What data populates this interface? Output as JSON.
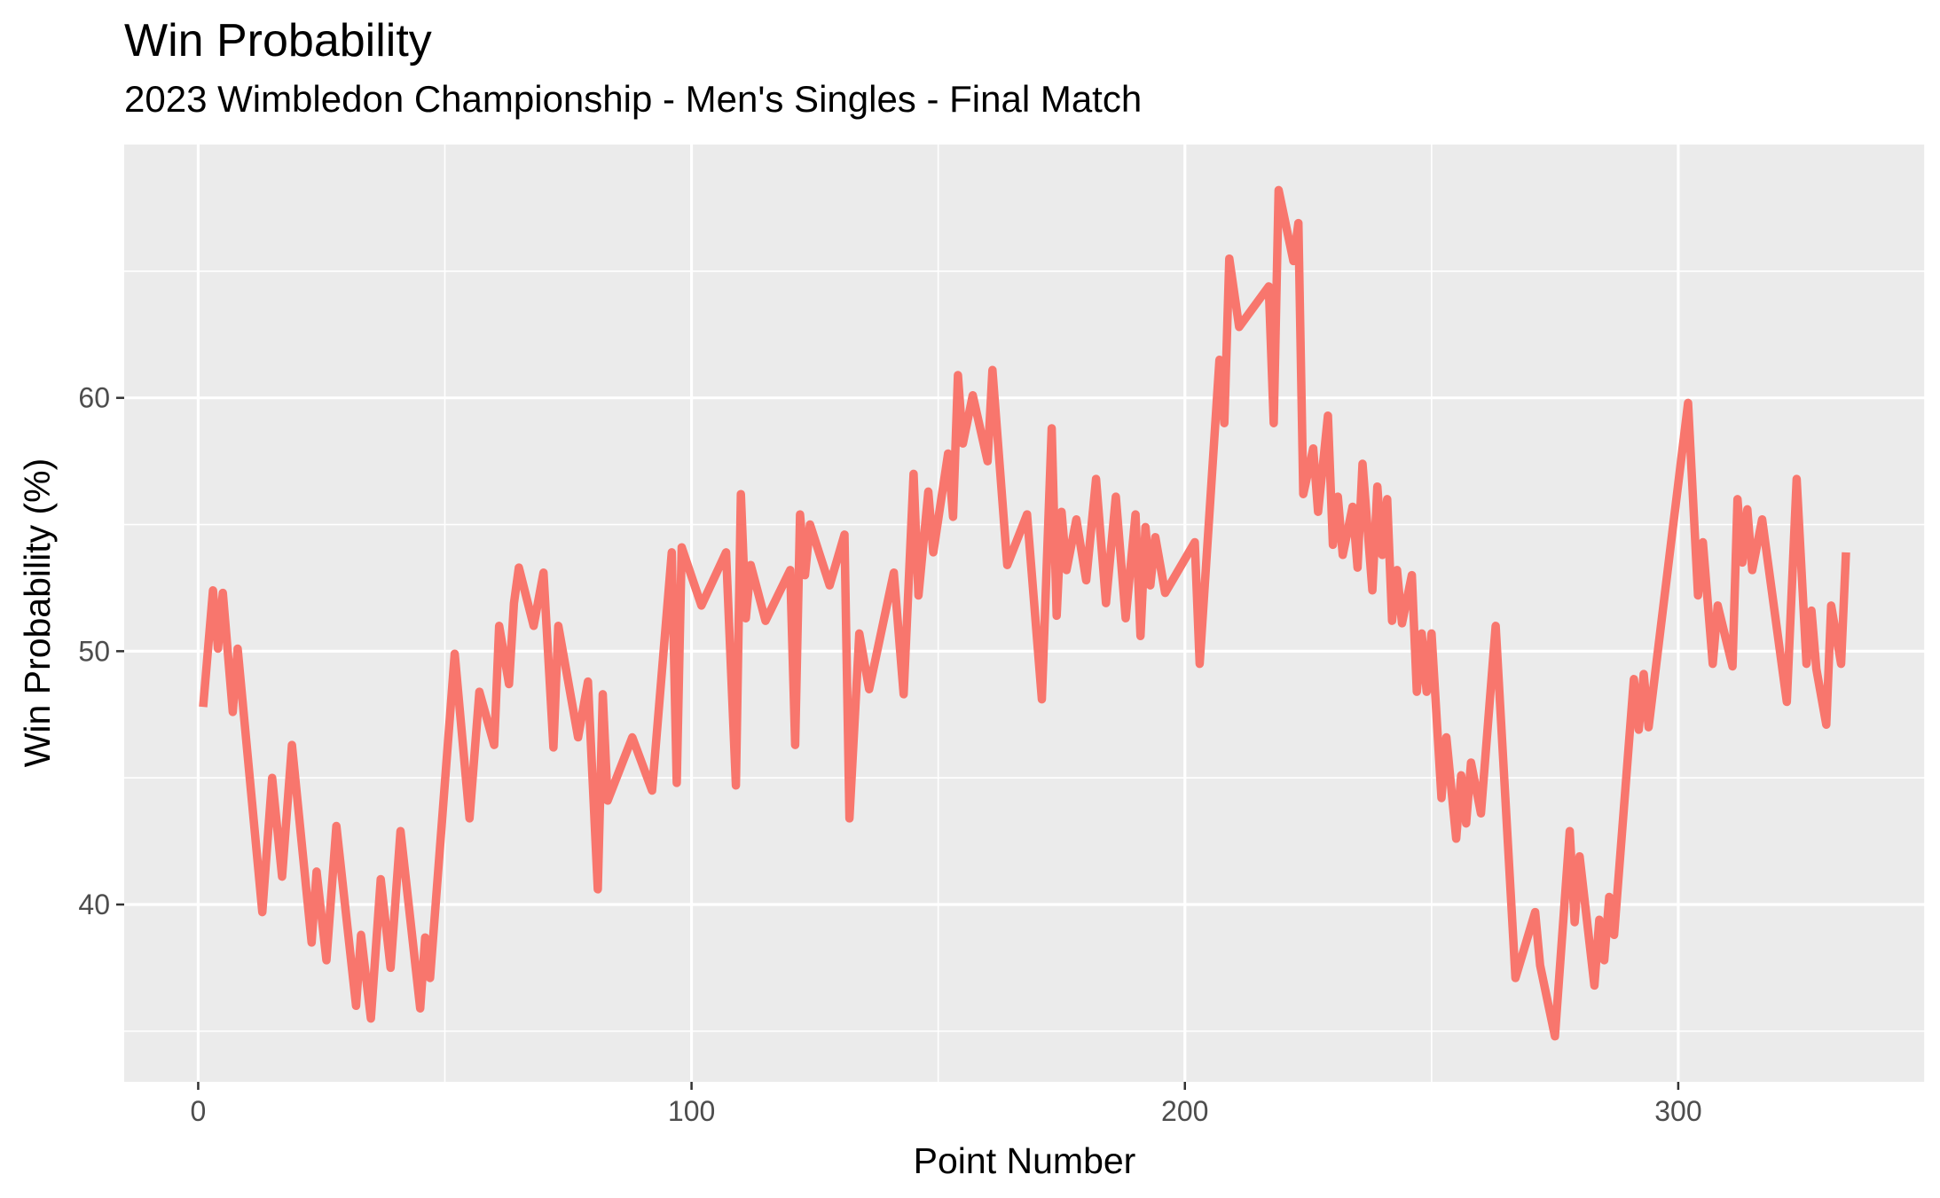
{
  "chart_data": {
    "type": "line",
    "title": "Win Probability",
    "subtitle": "2023 Wimbledon Championship - Men's Singles - Final Match",
    "xlabel": "Point Number",
    "ylabel": "Win Probability (%)",
    "xlim": [
      -15,
      350
    ],
    "ylim": [
      33,
      70
    ],
    "x_ticks": [
      0,
      100,
      200,
      300
    ],
    "y_ticks": [
      40,
      50,
      60
    ],
    "grid": true,
    "legend": "none",
    "colors": {
      "line": "#F8766D",
      "panel": "#EBEBEB",
      "grid": "#FFFFFF"
    },
    "series": [
      {
        "x": [
          1,
          3,
          4,
          5,
          7,
          8,
          13,
          15,
          17,
          19,
          23,
          24,
          26,
          28,
          32,
          33,
          35,
          37,
          39,
          41,
          45,
          46,
          47,
          52,
          55,
          57,
          60,
          61,
          63,
          64,
          65,
          68,
          70,
          72,
          73,
          77,
          79,
          81,
          82,
          83,
          88,
          92,
          96,
          97,
          98,
          102,
          107,
          109,
          110,
          111,
          112,
          115,
          120,
          121,
          122,
          123,
          124,
          128,
          131,
          132,
          134,
          136,
          141,
          143,
          145,
          146,
          148,
          149,
          152,
          153,
          154,
          155,
          157,
          160,
          161,
          164,
          168,
          171,
          173,
          174,
          175,
          176,
          178,
          180,
          182,
          184,
          186,
          188,
          190,
          191,
          192,
          193,
          194,
          196,
          202,
          203,
          207,
          208,
          209,
          211,
          217,
          218,
          219,
          222,
          223,
          224,
          226,
          227,
          228,
          229,
          230,
          231,
          232,
          234,
          235,
          236,
          238,
          239,
          240,
          241,
          242,
          243,
          244,
          246,
          247,
          248,
          249,
          250,
          252,
          253,
          255,
          256,
          257,
          258,
          260,
          263,
          267,
          271,
          272,
          275,
          278,
          279,
          280,
          283,
          284,
          285,
          286,
          287,
          291,
          292,
          293,
          294,
          302,
          304,
          305,
          307,
          308,
          311,
          312,
          313,
          314,
          315,
          317,
          322,
          324,
          326,
          327,
          328,
          330,
          331,
          333,
          334
        ],
        "y": [
          47.8,
          52.4,
          50.1,
          52.3,
          47.6,
          50.1,
          39.7,
          45,
          41.1,
          46.3,
          38.5,
          41.3,
          37.8,
          43.1,
          36,
          38.8,
          35.5,
          41,
          37.5,
          42.9,
          35.9,
          38.7,
          37.1,
          49.9,
          43.4,
          48.4,
          46.3,
          51,
          48.7,
          51.9,
          53.3,
          51,
          53.1,
          46.2,
          51,
          46.6,
          48.8,
          40.6,
          48.3,
          44.1,
          46.6,
          44.5,
          53.9,
          44.8,
          54.1,
          51.8,
          53.9,
          44.7,
          56.2,
          51.3,
          53.4,
          51.2,
          53.2,
          46.3,
          55.4,
          53,
          55,
          52.6,
          54.6,
          43.4,
          50.7,
          48.5,
          53.1,
          48.3,
          57,
          52.2,
          56.3,
          53.9,
          57.8,
          55.3,
          60.9,
          58.2,
          60.1,
          57.5,
          61.1,
          53.4,
          55.4,
          48.1,
          58.8,
          51.4,
          55.5,
          53.2,
          55.2,
          52.8,
          56.8,
          51.9,
          56.1,
          51.3,
          55.4,
          50.6,
          54.9,
          52.6,
          54.5,
          52.3,
          54.3,
          49.5,
          61.5,
          59,
          65.5,
          62.8,
          64.4,
          59,
          68.2,
          65.4,
          66.9,
          56.2,
          58,
          55.5,
          57.4,
          59.3,
          54.2,
          56.1,
          53.8,
          55.7,
          53.3,
          57.4,
          52.4,
          56.5,
          53.8,
          56,
          51.2,
          53.2,
          51.1,
          53,
          48.4,
          50.7,
          48.4,
          50.7,
          44.2,
          46.6,
          42.6,
          45.1,
          43.2,
          45.6,
          43.6,
          51,
          37.1,
          39.7,
          37.6,
          34.8,
          42.9,
          39.3,
          41.9,
          36.8,
          39.4,
          37.8,
          40.3,
          38.8,
          48.9,
          46.9,
          49.1,
          47,
          59.8,
          52.2,
          54.3,
          49.5,
          51.8,
          49.4,
          56,
          53.5,
          55.6,
          53.2,
          55.2,
          48,
          56.8,
          49.5,
          51.6,
          49.3,
          47.1,
          51.8,
          49.5,
          53.9
        ]
      }
    ]
  }
}
